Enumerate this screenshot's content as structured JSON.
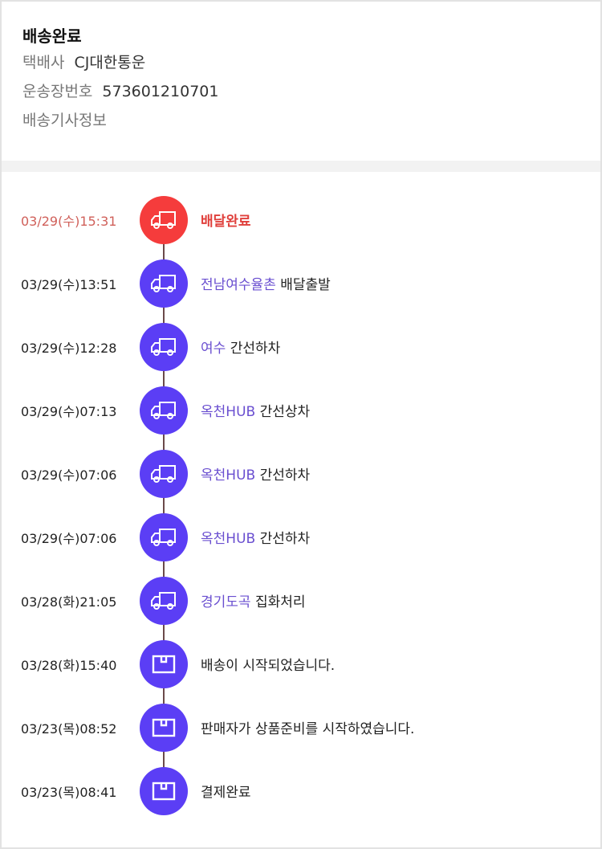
{
  "header": {
    "status": "배송완료",
    "carrier_label": "택배사",
    "carrier_value": "CJ대한통운",
    "tracking_label": "운송장번호",
    "tracking_value": "573601210701",
    "driver_info_link": "배송기사정보"
  },
  "colors": {
    "accent": "#5b3ef5",
    "current": "#f53c3c"
  },
  "events": [
    {
      "time": "03/29(수)15:31",
      "location": "",
      "text": "배달완료",
      "icon": "truck-icon",
      "current": true
    },
    {
      "time": "03/29(수)13:51",
      "location": "전남여수율촌",
      "text": "배달출발",
      "icon": "truck-icon"
    },
    {
      "time": "03/29(수)12:28",
      "location": "여수",
      "text": "간선하차",
      "icon": "truck-icon"
    },
    {
      "time": "03/29(수)07:13",
      "location": "옥천HUB",
      "text": "간선상차",
      "icon": "truck-icon"
    },
    {
      "time": "03/29(수)07:06",
      "location": "옥천HUB",
      "text": "간선하차",
      "icon": "truck-icon"
    },
    {
      "time": "03/29(수)07:06",
      "location": "옥천HUB",
      "text": "간선하차",
      "icon": "truck-icon"
    },
    {
      "time": "03/28(화)21:05",
      "location": "경기도곡",
      "text": "집화처리",
      "icon": "truck-icon"
    },
    {
      "time": "03/28(화)15:40",
      "location": "",
      "text": "배송이 시작되었습니다.",
      "icon": "box-icon"
    },
    {
      "time": "03/23(목)08:52",
      "location": "",
      "text": "판매자가 상품준비를 시작하였습니다.",
      "icon": "box-icon"
    },
    {
      "time": "03/23(목)08:41",
      "location": "",
      "text": "결제완료",
      "icon": "box-icon"
    }
  ]
}
